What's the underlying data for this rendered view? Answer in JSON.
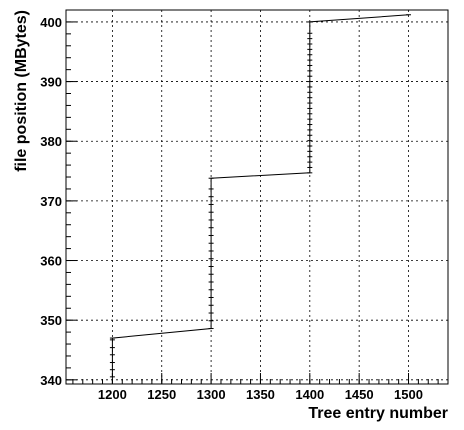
{
  "chart_data": {
    "type": "line",
    "title": "",
    "xlabel": "Tree entry number",
    "ylabel": "file position (MBytes)",
    "xlim": [
      1153,
      1540
    ],
    "ylim": [
      339.3,
      402.0
    ],
    "x_ticks": [
      1200,
      1250,
      1300,
      1350,
      1400,
      1450,
      1500
    ],
    "y_ticks": [
      340,
      350,
      360,
      370,
      380,
      390,
      400
    ],
    "grid": true,
    "legend": "none",
    "line_color": "#000000",
    "series": [
      {
        "x": [
          1200,
          1200,
          1200,
          1200,
          1200,
          1200,
          1200,
          1300,
          1300,
          1300,
          1300,
          1300,
          1300,
          1300,
          1300,
          1300,
          1300,
          1300,
          1300,
          1300,
          1300,
          1300,
          1300,
          1300,
          1300,
          1300,
          1300,
          1400,
          1400,
          1400,
          1400,
          1400,
          1400,
          1400,
          1400,
          1400,
          1400,
          1400,
          1400,
          1400,
          1400,
          1400,
          1400,
          1400,
          1400,
          1400,
          1400,
          1400,
          1400,
          1400,
          1400,
          1400,
          1400,
          1400,
          1400,
          1500
        ],
        "y": [
          340.5,
          341.7,
          342.9,
          344.2,
          345.4,
          346.7,
          347.0,
          348.6,
          349.9,
          351.2,
          352.5,
          353.8,
          355.1,
          356.4,
          357.7,
          359.0,
          360.3,
          361.6,
          362.9,
          364.2,
          365.5,
          366.8,
          368.1,
          369.4,
          370.7,
          372.0,
          373.8,
          374.7,
          375.6,
          376.5,
          377.4,
          378.3,
          379.2,
          380.1,
          381.0,
          381.9,
          382.8,
          383.7,
          384.6,
          385.5,
          386.4,
          387.3,
          388.2,
          389.1,
          390.0,
          390.9,
          391.8,
          392.7,
          393.6,
          394.5,
          395.4,
          396.3,
          397.2,
          398.1,
          400.0,
          401.2
        ]
      }
    ]
  }
}
